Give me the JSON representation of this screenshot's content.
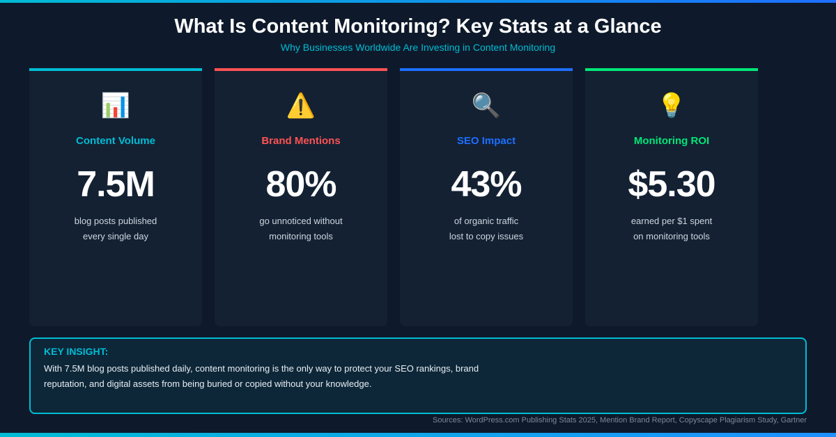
{
  "header": {
    "title": "What Is Content Monitoring? Key Stats at a Glance",
    "subtitle": "Why Businesses Worldwide Are Investing in Content Monitoring"
  },
  "cards": [
    {
      "icon": "📊",
      "icon_name": "bar-chart-icon",
      "label": "Content Volume",
      "value": "7.5M",
      "line1": "blog posts published",
      "line2": "every single day",
      "color": "#00bcd4"
    },
    {
      "icon": "⚠️",
      "icon_name": "warning-icon",
      "label": "Brand Mentions",
      "value": "80%",
      "line1": "go unnoticed without",
      "line2": "monitoring tools",
      "color": "#ff5252"
    },
    {
      "icon": "🔍",
      "icon_name": "magnifier-icon",
      "label": "SEO Impact",
      "value": "43%",
      "line1": "of organic traffic",
      "line2": "lost to copy issues",
      "color": "#1e6fff"
    },
    {
      "icon": "💡",
      "icon_name": "lightbulb-icon",
      "label": "Monitoring ROI",
      "value": "$5.30",
      "line1": "earned per $1 spent",
      "line2": "on monitoring tools",
      "color": "#00e676"
    }
  ],
  "insight": {
    "heading": "KEY INSIGHT:",
    "text": "With 7.5M blog posts published daily, content monitoring is the only way to protect your SEO rankings, brand reputation, and digital assets from being buried or copied without your knowledge."
  },
  "sources": "Sources: WordPress.com Publishing Stats 2025, Mention Brand Report, Copyscape Plagiarism Study, Gartner"
}
